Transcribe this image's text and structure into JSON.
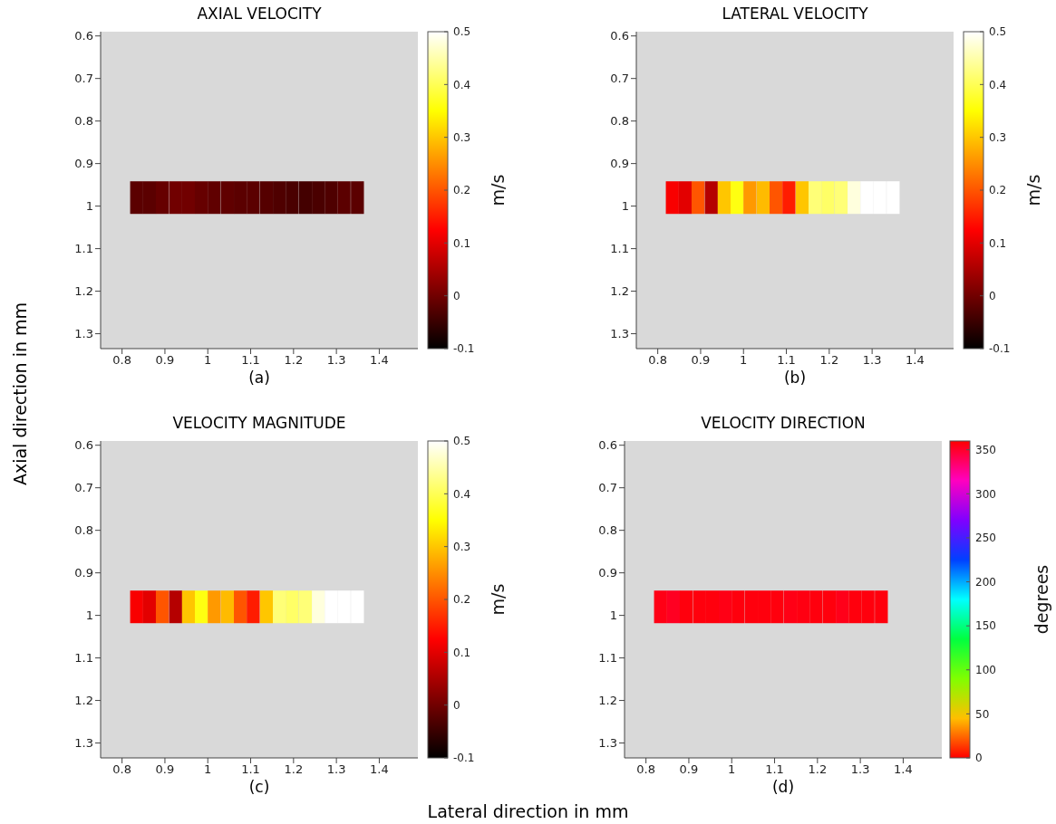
{
  "chart_data": [
    {
      "type": "scatter",
      "marker": "square",
      "title": "AXIAL VELOCITY",
      "xlabel": "Lateral direction in mm",
      "ylabel": "Axial direction in mm",
      "annotations": [
        "(a)"
      ],
      "x": [
        0.834,
        0.864,
        0.894,
        0.925,
        0.955,
        0.985,
        1.015,
        1.046,
        1.076,
        1.106,
        1.137,
        1.167,
        1.197,
        1.228,
        1.258,
        1.288,
        1.318,
        1.349
      ],
      "values": [
        0.98,
        0.98,
        0.98,
        0.98,
        0.98,
        0.98,
        0.98,
        0.98,
        0.98,
        0.98,
        0.98,
        0.98,
        0.98,
        0.98,
        0.98,
        0.98,
        0.98,
        0.98
      ],
      "cvalues": [
        -0.02,
        -0.02,
        -0.01,
        0.0,
        0.0,
        -0.01,
        -0.015,
        -0.015,
        -0.02,
        -0.02,
        -0.025,
        -0.03,
        -0.035,
        -0.04,
        -0.035,
        -0.03,
        -0.02,
        -0.02
      ],
      "xlim": [
        0.75,
        1.49
      ],
      "ylim": [
        1.335,
        0.59
      ],
      "xticks": [
        0.8,
        0.9,
        1,
        1.1,
        1.2,
        1.3,
        1.4
      ],
      "yticks": [
        0.6,
        0.7,
        0.8,
        0.9,
        1,
        1.1,
        1.2,
        1.3
      ],
      "clim": [
        -0.1,
        0.5
      ],
      "cticks": [
        -0.1,
        0,
        0.1,
        0.2,
        0.3,
        0.4,
        0.5
      ],
      "clabel": "m/s"
    },
    {
      "type": "scatter",
      "marker": "square",
      "title": "LATERAL VELOCITY",
      "annotations": [
        "(b)"
      ],
      "x": [
        0.834,
        0.864,
        0.894,
        0.925,
        0.955,
        0.985,
        1.015,
        1.046,
        1.076,
        1.106,
        1.137,
        1.167,
        1.197,
        1.228,
        1.258,
        1.288,
        1.318,
        1.349
      ],
      "values": [
        0.98,
        0.98,
        0.98,
        0.98,
        0.98,
        0.98,
        0.98,
        0.98,
        0.98,
        0.98,
        0.98,
        0.98,
        0.98,
        0.98,
        0.98,
        0.98,
        0.98,
        0.98
      ],
      "cvalues": [
        0.12,
        0.1,
        0.2,
        0.06,
        0.3,
        0.36,
        0.26,
        0.29,
        0.2,
        0.15,
        0.3,
        0.42,
        0.41,
        0.42,
        0.48,
        0.5,
        0.5,
        0.5
      ],
      "xlim": [
        0.75,
        1.49
      ],
      "ylim": [
        1.335,
        0.59
      ],
      "xticks": [
        0.8,
        0.9,
        1,
        1.1,
        1.2,
        1.3,
        1.4
      ],
      "yticks": [
        0.6,
        0.7,
        0.8,
        0.9,
        1,
        1.1,
        1.2,
        1.3
      ],
      "clim": [
        -0.1,
        0.5
      ],
      "cticks": [
        -0.1,
        0,
        0.1,
        0.2,
        0.3,
        0.4,
        0.5
      ],
      "clabel": "m/s"
    },
    {
      "type": "scatter",
      "marker": "square",
      "title": "VELOCITY MAGNITUDE",
      "annotations": [
        "(c)"
      ],
      "x": [
        0.834,
        0.864,
        0.894,
        0.925,
        0.955,
        0.985,
        1.015,
        1.046,
        1.076,
        1.106,
        1.137,
        1.167,
        1.197,
        1.228,
        1.258,
        1.288,
        1.318,
        1.349
      ],
      "values": [
        0.98,
        0.98,
        0.98,
        0.98,
        0.98,
        0.98,
        0.98,
        0.98,
        0.98,
        0.98,
        0.98,
        0.98,
        0.98,
        0.98,
        0.98,
        0.98,
        0.98,
        0.98
      ],
      "cvalues": [
        0.12,
        0.1,
        0.2,
        0.06,
        0.3,
        0.36,
        0.26,
        0.29,
        0.2,
        0.15,
        0.3,
        0.42,
        0.41,
        0.42,
        0.48,
        0.5,
        0.5,
        0.5
      ],
      "xlim": [
        0.75,
        1.49
      ],
      "ylim": [
        1.335,
        0.59
      ],
      "xticks": [
        0.8,
        0.9,
        1,
        1.1,
        1.2,
        1.3,
        1.4
      ],
      "yticks": [
        0.6,
        0.7,
        0.8,
        0.9,
        1,
        1.1,
        1.2,
        1.3
      ],
      "clim": [
        -0.1,
        0.5
      ],
      "cticks": [
        -0.1,
        0,
        0.1,
        0.2,
        0.3,
        0.4,
        0.5
      ],
      "clabel": "m/s"
    },
    {
      "type": "scatter",
      "marker": "square",
      "title": "VELOCITY DIRECTION",
      "annotations": [
        "(d)"
      ],
      "x": [
        0.834,
        0.864,
        0.894,
        0.925,
        0.955,
        0.985,
        1.015,
        1.046,
        1.076,
        1.106,
        1.137,
        1.167,
        1.197,
        1.228,
        1.258,
        1.288,
        1.318,
        1.349
      ],
      "values": [
        0.98,
        0.98,
        0.98,
        0.98,
        0.98,
        0.98,
        0.98,
        0.98,
        0.98,
        0.98,
        0.98,
        0.98,
        0.98,
        0.98,
        0.98,
        0.98,
        0.98,
        0.98
      ],
      "cvalues": [
        355,
        352,
        357,
        357,
        357,
        355,
        357,
        357,
        357,
        357,
        355,
        356,
        357,
        357,
        354,
        357,
        357,
        357
      ],
      "xlim": [
        0.75,
        1.49
      ],
      "ylim": [
        1.335,
        0.59
      ],
      "xticks": [
        0.8,
        0.9,
        1,
        1.1,
        1.2,
        1.3,
        1.4
      ],
      "yticks": [
        0.6,
        0.7,
        0.8,
        0.9,
        1,
        1.1,
        1.2,
        1.3
      ],
      "clim": [
        0,
        360
      ],
      "cticks": [
        0,
        50,
        100,
        150,
        200,
        250,
        300,
        350
      ],
      "clabel": "degrees"
    }
  ]
}
